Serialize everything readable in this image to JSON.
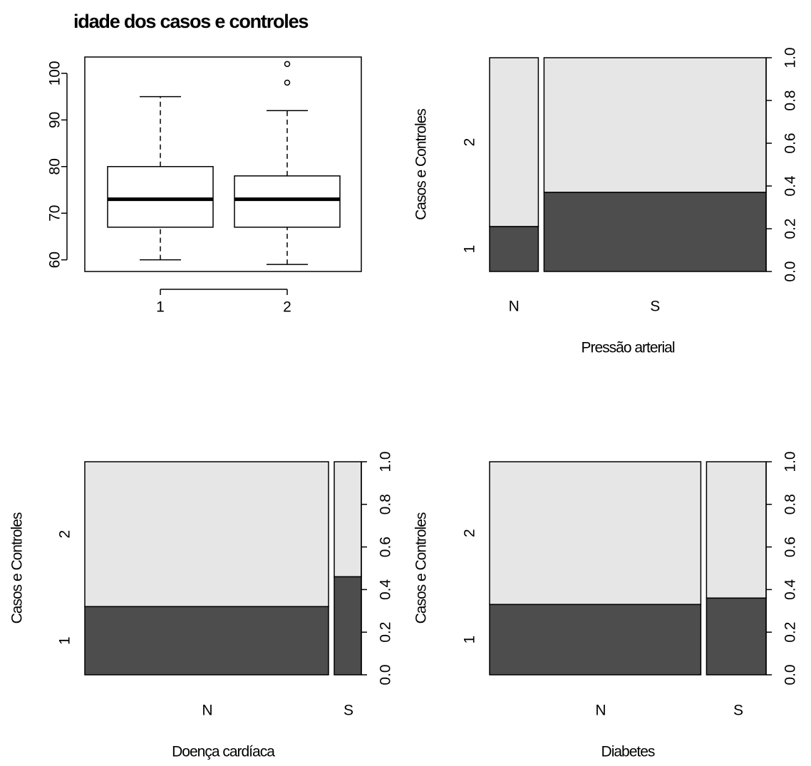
{
  "colors": {
    "light": "#e6e6e6",
    "dark": "#4d4d4d",
    "axis": "#000000",
    "background": "#ffffff"
  },
  "chart_data": [
    {
      "type": "boxplot",
      "title": "idade dos casos e controles",
      "categories": [
        "1",
        "2"
      ],
      "ylim": [
        57.5,
        103.5
      ],
      "yticks": [
        60,
        70,
        80,
        90,
        100
      ],
      "boxes": [
        {
          "name": "1",
          "whisker_low": 60,
          "q1": 67,
          "median": 73,
          "q3": 80,
          "whisker_high": 95,
          "outliers": []
        },
        {
          "name": "2",
          "whisker_low": 59,
          "q1": 67,
          "median": 73,
          "q3": 78,
          "whisker_high": 92,
          "outliers": [
            98,
            102
          ]
        }
      ],
      "xlabel": "",
      "ylabel": ""
    },
    {
      "type": "spineplot",
      "xlabel": "Pressão arterial",
      "ylabel": "Casos e Controles",
      "categories": [
        "N",
        "S"
      ],
      "widths": [
        0.18,
        0.82
      ],
      "series": [
        {
          "name": "1",
          "values": [
            0.21,
            0.37
          ]
        },
        {
          "name": "2",
          "values": [
            0.79,
            0.63
          ]
        }
      ],
      "left_tick_labels": [
        "1",
        "2"
      ],
      "right_axis_ticks": [
        "0.0",
        "0.2",
        "0.4",
        "0.6",
        "0.8",
        "1.0"
      ]
    },
    {
      "type": "spineplot",
      "xlabel": "Doença cardíaca",
      "ylabel": "Casos e Controles",
      "categories": [
        "N",
        "S"
      ],
      "widths": [
        0.9,
        0.1
      ],
      "series": [
        {
          "name": "1",
          "values": [
            0.32,
            0.46
          ]
        },
        {
          "name": "2",
          "values": [
            0.68,
            0.54
          ]
        }
      ],
      "left_tick_labels": [
        "1",
        "2"
      ],
      "right_axis_ticks": [
        "0.0",
        "0.2",
        "0.4",
        "0.6",
        "0.8",
        "1.0"
      ]
    },
    {
      "type": "spineplot",
      "xlabel": "Diabetes",
      "ylabel": "Casos e Controles",
      "categories": [
        "N",
        "S"
      ],
      "widths": [
        0.78,
        0.22
      ],
      "series": [
        {
          "name": "1",
          "values": [
            0.33,
            0.36
          ]
        },
        {
          "name": "2",
          "values": [
            0.67,
            0.64
          ]
        }
      ],
      "left_tick_labels": [
        "1",
        "2"
      ],
      "right_axis_ticks": [
        "0.0",
        "0.2",
        "0.4",
        "0.6",
        "0.8",
        "1.0"
      ]
    }
  ]
}
